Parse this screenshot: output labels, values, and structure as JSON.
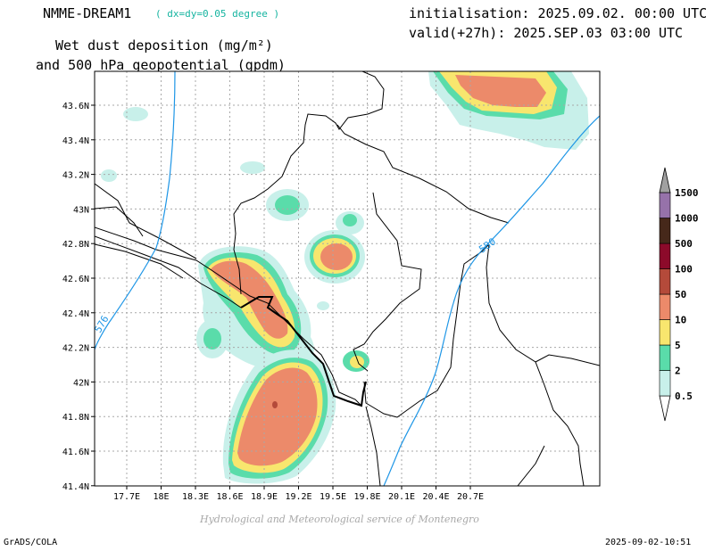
{
  "header": {
    "model": "NMME-DREAM1",
    "resolution": "( dx=dy=0.05 degree )",
    "title_line1": "Wet dust deposition (mg/m²)",
    "title_line2": "and 500 hPa geopotential (gpdm)",
    "initialisation": "initialisation: 2025.09.02. 00:00 UTC",
    "valid": "valid(+27h): 2025.SEP.03 03:00 UTC"
  },
  "map": {
    "lon_labels": [
      "17.7E",
      "18E",
      "18.3E",
      "18.6E",
      "18.9E",
      "19.2E",
      "19.5E",
      "19.8E",
      "20.1E",
      "20.4E",
      "20.7E"
    ],
    "lat_labels": [
      "43.6N",
      "43.4N",
      "43.2N",
      "43N",
      "42.8N",
      "42.6N",
      "42.4N",
      "42.2N",
      "42N",
      "41.8N",
      "41.6N",
      "41.4N"
    ],
    "contour_labels": [
      "576",
      "580"
    ],
    "contour_color": "#1e96e6"
  },
  "colorbar": {
    "labels": [
      "0.5",
      "2",
      "5",
      "10",
      "50",
      "100",
      "500",
      "1000",
      "1500"
    ],
    "colors": [
      "#c8f0ea",
      "#5adcaa",
      "#f8e66e",
      "#ec8a6a",
      "#b44a3a",
      "#8c0a2a",
      "#46281a",
      "#9672aa",
      "#a0a0a0"
    ]
  },
  "footer": {
    "credit": "Hydrological and Meteorological service of Montenegro",
    "software": "GrADS/COLA",
    "timestamp": "2025-09-02-10:51"
  }
}
